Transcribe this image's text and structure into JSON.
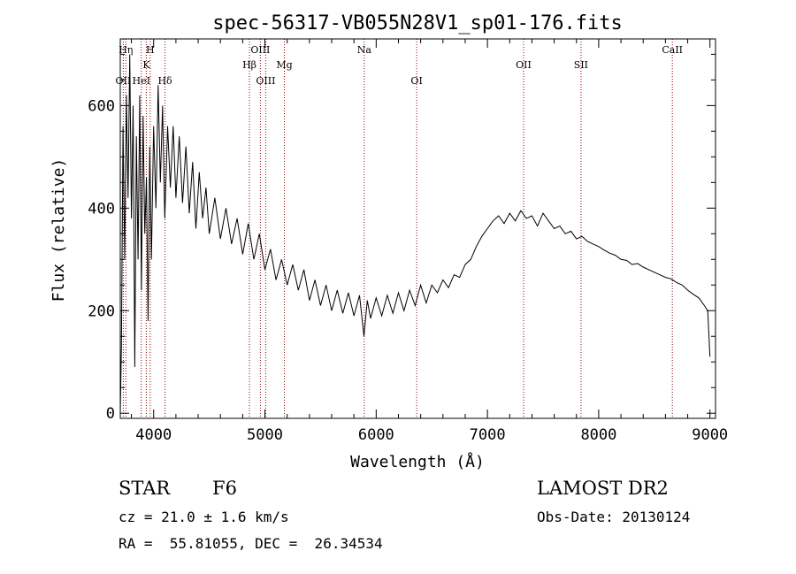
{
  "chart_data": {
    "type": "line",
    "title": "spec-56317-VB055N28V1_sp01-176.fits",
    "xlabel": "Wavelength (Å)",
    "ylabel": "Flux (relative)",
    "xlim": [
      3700,
      9050
    ],
    "ylim": [
      -10,
      730
    ],
    "xticks": [
      4000,
      5000,
      6000,
      7000,
      8000,
      9000
    ],
    "yticks": [
      0,
      200,
      400,
      600
    ],
    "grid": false,
    "series": [
      {
        "points": [
          [
            3700,
            0
          ],
          [
            3710,
            130
          ],
          [
            3725,
            560
          ],
          [
            3740,
            300
          ],
          [
            3755,
            620
          ],
          [
            3770,
            420
          ],
          [
            3785,
            700
          ],
          [
            3800,
            380
          ],
          [
            3815,
            600
          ],
          [
            3830,
            90
          ],
          [
            3845,
            540
          ],
          [
            3860,
            300
          ],
          [
            3875,
            620
          ],
          [
            3890,
            240
          ],
          [
            3905,
            580
          ],
          [
            3920,
            350
          ],
          [
            3935,
            460
          ],
          [
            3950,
            180
          ],
          [
            3965,
            520
          ],
          [
            3980,
            300
          ],
          [
            4000,
            560
          ],
          [
            4020,
            400
          ],
          [
            4040,
            640
          ],
          [
            4060,
            450
          ],
          [
            4080,
            600
          ],
          [
            4100,
            380
          ],
          [
            4125,
            560
          ],
          [
            4150,
            440
          ],
          [
            4175,
            560
          ],
          [
            4200,
            420
          ],
          [
            4230,
            540
          ],
          [
            4260,
            410
          ],
          [
            4290,
            520
          ],
          [
            4320,
            390
          ],
          [
            4350,
            490
          ],
          [
            4380,
            360
          ],
          [
            4410,
            470
          ],
          [
            4440,
            380
          ],
          [
            4470,
            440
          ],
          [
            4500,
            350
          ],
          [
            4550,
            420
          ],
          [
            4600,
            340
          ],
          [
            4650,
            400
          ],
          [
            4700,
            330
          ],
          [
            4750,
            380
          ],
          [
            4800,
            310
          ],
          [
            4850,
            370
          ],
          [
            4900,
            300
          ],
          [
            4950,
            350
          ],
          [
            5000,
            280
          ],
          [
            5050,
            320
          ],
          [
            5100,
            260
          ],
          [
            5150,
            300
          ],
          [
            5200,
            250
          ],
          [
            5250,
            290
          ],
          [
            5300,
            240
          ],
          [
            5350,
            280
          ],
          [
            5400,
            220
          ],
          [
            5450,
            260
          ],
          [
            5500,
            210
          ],
          [
            5550,
            250
          ],
          [
            5600,
            200
          ],
          [
            5650,
            240
          ],
          [
            5700,
            195
          ],
          [
            5750,
            235
          ],
          [
            5800,
            190
          ],
          [
            5850,
            230
          ],
          [
            5890,
            150
          ],
          [
            5920,
            220
          ],
          [
            5950,
            185
          ],
          [
            6000,
            225
          ],
          [
            6050,
            190
          ],
          [
            6100,
            230
          ],
          [
            6150,
            195
          ],
          [
            6200,
            235
          ],
          [
            6250,
            200
          ],
          [
            6300,
            240
          ],
          [
            6350,
            210
          ],
          [
            6400,
            250
          ],
          [
            6450,
            215
          ],
          [
            6500,
            250
          ],
          [
            6550,
            235
          ],
          [
            6600,
            260
          ],
          [
            6650,
            245
          ],
          [
            6700,
            270
          ],
          [
            6750,
            265
          ],
          [
            6800,
            290
          ],
          [
            6850,
            300
          ],
          [
            6900,
            325
          ],
          [
            6950,
            345
          ],
          [
            7000,
            360
          ],
          [
            7050,
            375
          ],
          [
            7100,
            385
          ],
          [
            7150,
            370
          ],
          [
            7200,
            390
          ],
          [
            7250,
            375
          ],
          [
            7300,
            395
          ],
          [
            7350,
            380
          ],
          [
            7400,
            385
          ],
          [
            7450,
            365
          ],
          [
            7500,
            390
          ],
          [
            7550,
            375
          ],
          [
            7600,
            360
          ],
          [
            7650,
            365
          ],
          [
            7700,
            350
          ],
          [
            7750,
            355
          ],
          [
            7800,
            340
          ],
          [
            7850,
            345
          ],
          [
            7900,
            335
          ],
          [
            7950,
            330
          ],
          [
            8000,
            325
          ],
          [
            8050,
            318
          ],
          [
            8100,
            312
          ],
          [
            8150,
            308
          ],
          [
            8200,
            300
          ],
          [
            8250,
            298
          ],
          [
            8300,
            290
          ],
          [
            8350,
            292
          ],
          [
            8400,
            285
          ],
          [
            8450,
            280
          ],
          [
            8500,
            275
          ],
          [
            8550,
            270
          ],
          [
            8600,
            265
          ],
          [
            8650,
            262
          ],
          [
            8700,
            255
          ],
          [
            8750,
            250
          ],
          [
            8800,
            240
          ],
          [
            8850,
            232
          ],
          [
            8900,
            225
          ],
          [
            8950,
            210
          ],
          [
            8980,
            200
          ],
          [
            9000,
            110
          ]
        ]
      }
    ],
    "lines": [
      {
        "wave": 3727,
        "label": "OII",
        "row": 3
      },
      {
        "wave": 3750,
        "label": "Hη",
        "row": 0
      },
      {
        "wave": 3889,
        "label": "HeI",
        "row": 3
      },
      {
        "wave": 3934,
        "label": "K",
        "row": 1
      },
      {
        "wave": 3969,
        "label": "H",
        "row": 0
      },
      {
        "wave": 4102,
        "label": "Hδ",
        "row": 3
      },
      {
        "wave": 4861,
        "label": "Hβ",
        "row": 2
      },
      {
        "wave": 4959,
        "label": "OIII",
        "row": 0
      },
      {
        "wave": 5007,
        "label": "OIII",
        "row": 3
      },
      {
        "wave": 5175,
        "label": "Mg",
        "row": 2
      },
      {
        "wave": 5893,
        "label": "Na",
        "row": 0
      },
      {
        "wave": 6364,
        "label": "OI",
        "row": 3
      },
      {
        "wave": 7325,
        "label": "OII",
        "row": 2
      },
      {
        "wave": 7841,
        "label": "SII",
        "row": 2
      },
      {
        "wave": 8662,
        "label": "CaII",
        "row": 0
      }
    ]
  },
  "info": {
    "class": "STAR",
    "subclass": "F6",
    "survey": "LAMOST DR2",
    "cz": "cz = 21.0 ± 1.6 km/s",
    "obs_date": "Obs-Date: 20130124",
    "coords": "RA =  55.81055, DEC =  26.34534"
  },
  "colors": {
    "spectrum": "#000000",
    "line_markers": "#8b0000",
    "axis": "#000000"
  }
}
